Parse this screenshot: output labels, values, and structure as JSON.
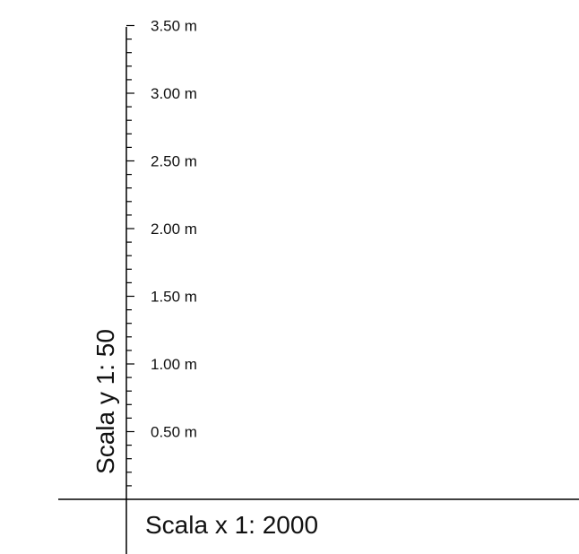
{
  "y_axis": {
    "tick_labels": [
      "0.50 m",
      "1.00 m",
      "1.50 m",
      "2.00 m",
      "2.50 m",
      "3.00 m",
      "3.50 m"
    ],
    "tick_values": [
      0.5,
      1.0,
      1.5,
      2.0,
      2.5,
      3.0,
      3.5
    ],
    "range": [
      0,
      3.5
    ],
    "minor_step": 0.1,
    "unit": "m"
  },
  "y_scale_label": "Scala y 1:  50",
  "x_scale_label": "Scala x 1:  2000",
  "colors": {
    "line": "#000000",
    "text": "#111111",
    "background": "#ffffff"
  }
}
